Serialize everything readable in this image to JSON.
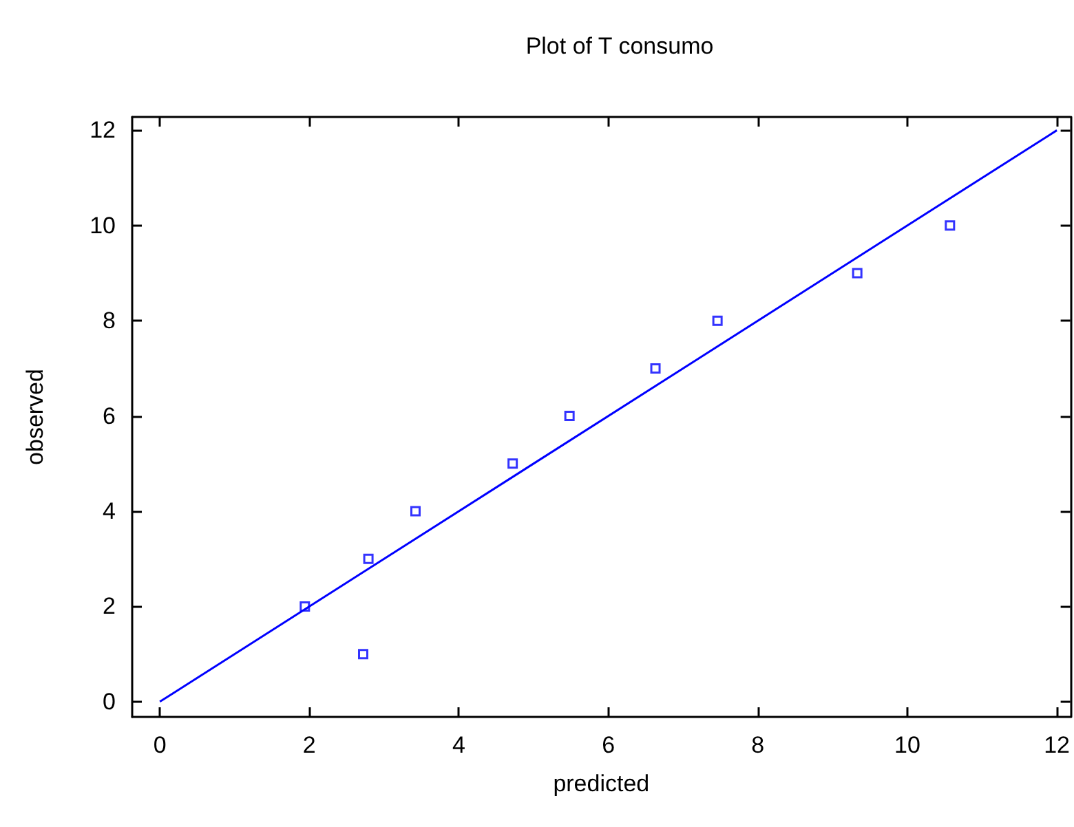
{
  "chart_data": {
    "type": "scatter",
    "title": "Plot of T consumo",
    "xlabel": "predicted",
    "ylabel": "observed",
    "xlim": [
      -0.37,
      12.18
    ],
    "ylim": [
      -0.32,
      12.28
    ],
    "xticks": [
      0,
      2,
      4,
      6,
      8,
      10,
      12
    ],
    "yticks": [
      0,
      2,
      4,
      6,
      8,
      10,
      12
    ],
    "grid": false,
    "marker": "square",
    "series": [
      {
        "color": "#0000ff",
        "x": [
          1.94,
          2.72,
          2.79,
          3.42,
          4.72,
          5.48,
          6.63,
          7.46,
          9.33,
          10.57
        ],
        "values": [
          2,
          1,
          3,
          4,
          5,
          6,
          7,
          8,
          9,
          10
        ]
      },
      {
        "type": "line",
        "color": "#0000ff",
        "marker": "none",
        "x": [
          0,
          12
        ],
        "values": [
          0,
          12
        ]
      }
    ]
  }
}
